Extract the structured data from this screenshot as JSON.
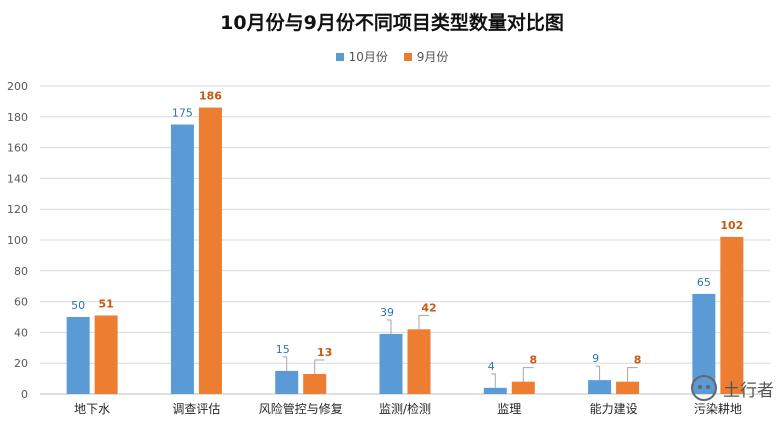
{
  "chart_data": {
    "type": "bar",
    "title": "10月份与9月份不同项目类型数量对比图",
    "categories": [
      "地下水",
      "调查评估",
      "风险管控与修复",
      "监测/检测",
      "监理",
      "能力建设",
      "污染耕地"
    ],
    "series": [
      {
        "name": "10月份",
        "values": [
          50,
          175,
          15,
          39,
          4,
          9,
          65
        ]
      },
      {
        "name": "9月份",
        "values": [
          51,
          186,
          13,
          42,
          8,
          8,
          102
        ]
      }
    ],
    "ylim": [
      0,
      200
    ],
    "yticks": [
      0,
      20,
      40,
      60,
      80,
      100,
      120,
      140,
      160,
      180,
      200
    ],
    "grid": true,
    "legend_position": "top"
  },
  "colors": {
    "series_1": "#5B9BD5",
    "series_2": "#ED7D31",
    "label_1": "#2E75B6",
    "label_2": "#C55A11",
    "grid": "#D9D9D9"
  },
  "watermark": {
    "text": "土行者",
    "icon": "wechat-icon"
  }
}
